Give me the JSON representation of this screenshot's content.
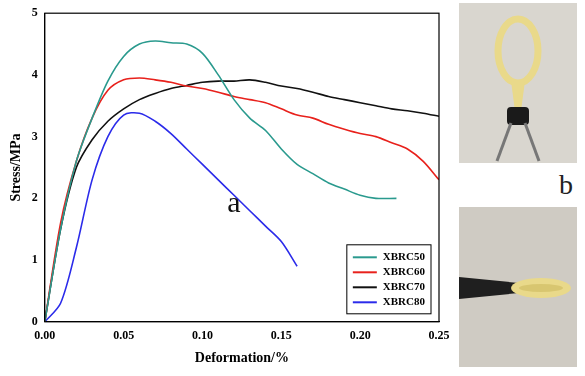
{
  "chart_data": {
    "type": "line",
    "x_label": "Deformation/%",
    "y_label": "Stress/MPa",
    "xlim": [
      0,
      0.25
    ],
    "xticks": [
      {
        "value": 0,
        "label": "0.00"
      },
      {
        "value": 0.05,
        "label": "0.05"
      },
      {
        "value": 0.1,
        "label": "0.10"
      },
      {
        "value": 0.15,
        "label": "0.15"
      },
      {
        "value": 0.2,
        "label": "0.20"
      },
      {
        "value": 0.25,
        "label": "0.25"
      }
    ],
    "ylim": [
      0,
      5
    ],
    "yticks": [
      0,
      1,
      2,
      3,
      4,
      5
    ],
    "grid": false,
    "legend": "lower right",
    "annotations": [
      {
        "text": "a",
        "x": 0.12,
        "y": 1.9
      }
    ],
    "series": [
      {
        "name": "XBRC50",
        "color": "#2a9a8e",
        "x": [
          0,
          0.01,
          0.02,
          0.03,
          0.04,
          0.05,
          0.06,
          0.07,
          0.08,
          0.09,
          0.1,
          0.11,
          0.12,
          0.13,
          0.14,
          0.15,
          0.16,
          0.17,
          0.18,
          0.19,
          0.2,
          0.21,
          0.223
        ],
        "values": [
          0,
          1.5,
          2.6,
          3.3,
          3.9,
          4.3,
          4.5,
          4.55,
          4.52,
          4.5,
          4.35,
          4.0,
          3.6,
          3.3,
          3.1,
          2.8,
          2.55,
          2.4,
          2.25,
          2.15,
          2.05,
          2.0,
          2.0
        ]
      },
      {
        "name": "XBRC60",
        "color": "#e8211c",
        "x": [
          0,
          0.01,
          0.02,
          0.03,
          0.04,
          0.05,
          0.06,
          0.07,
          0.08,
          0.09,
          0.1,
          0.11,
          0.12,
          0.13,
          0.14,
          0.15,
          0.16,
          0.17,
          0.18,
          0.19,
          0.2,
          0.21,
          0.22,
          0.23,
          0.24,
          0.25
        ],
        "values": [
          0,
          1.6,
          2.6,
          3.3,
          3.75,
          3.92,
          3.95,
          3.92,
          3.88,
          3.82,
          3.78,
          3.72,
          3.65,
          3.6,
          3.55,
          3.45,
          3.35,
          3.3,
          3.2,
          3.12,
          3.05,
          3.0,
          2.9,
          2.8,
          2.6,
          2.3
        ]
      },
      {
        "name": "XBRC70",
        "color": "#111111",
        "x": [
          0,
          0.01,
          0.02,
          0.03,
          0.04,
          0.05,
          0.06,
          0.07,
          0.08,
          0.09,
          0.1,
          0.11,
          0.12,
          0.13,
          0.14,
          0.15,
          0.16,
          0.17,
          0.18,
          0.19,
          0.2,
          0.21,
          0.22,
          0.23,
          0.24,
          0.25
        ],
        "values": [
          0,
          1.5,
          2.5,
          2.95,
          3.25,
          3.45,
          3.6,
          3.7,
          3.78,
          3.83,
          3.88,
          3.9,
          3.9,
          3.92,
          3.88,
          3.82,
          3.78,
          3.72,
          3.65,
          3.6,
          3.55,
          3.5,
          3.45,
          3.42,
          3.38,
          3.33
        ]
      },
      {
        "name": "XBRC80",
        "color": "#2b2bea",
        "x": [
          0,
          0.01,
          0.02,
          0.03,
          0.04,
          0.05,
          0.06,
          0.07,
          0.08,
          0.09,
          0.1,
          0.11,
          0.12,
          0.13,
          0.14,
          0.15,
          0.16
        ],
        "values": [
          0,
          0.3,
          1.2,
          2.3,
          3.0,
          3.35,
          3.38,
          3.25,
          3.05,
          2.8,
          2.55,
          2.3,
          2.05,
          1.8,
          1.55,
          1.3,
          0.9
        ]
      }
    ]
  },
  "photo_panel_label": "b"
}
